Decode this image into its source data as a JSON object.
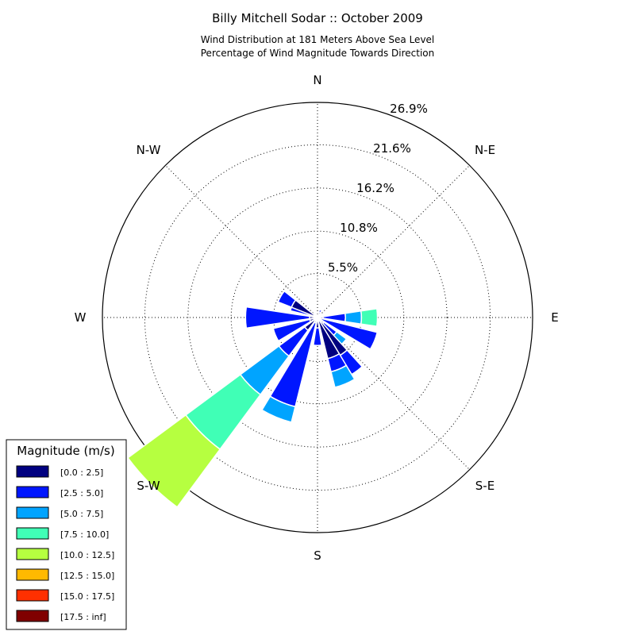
{
  "chart_data": {
    "type": "windrose",
    "title": "Billy Mitchell Sodar :: October 2009",
    "subtitle_lines": [
      "Wind Distribution at 181 Meters Above Sea Level",
      "Percentage of Wind Magnitude Towards Direction"
    ],
    "directions": [
      "N",
      "N-E",
      "E",
      "S-E",
      "S",
      "S-W",
      "W",
      "N-W"
    ],
    "ring_labels": [
      "5.5%",
      "10.8%",
      "16.2%",
      "21.6%",
      "26.9%"
    ],
    "ring_values": [
      5.5,
      10.8,
      16.2,
      21.6,
      26.9
    ],
    "rmax": 26.9,
    "legend": {
      "title": "Magnitude (m/s)",
      "bins": [
        {
          "label": "[0.0 : 2.5]",
          "color": "#000080"
        },
        {
          "label": "[2.5 : 5.0]",
          "color": "#0016ff"
        },
        {
          "label": "[5.0 : 7.5]",
          "color": "#00a4ff"
        },
        {
          "label": "[7.5 : 10.0]",
          "color": "#40ffb6"
        },
        {
          "label": "[10.0 : 12.5]",
          "color": "#b6ff40"
        },
        {
          "label": "[12.5 : 15.0]",
          "color": "#ffb900"
        },
        {
          "label": "[15.0 : 17.5]",
          "color": "#ff3000"
        },
        {
          "label": "[17.5 : inf]",
          "color": "#800000"
        }
      ]
    },
    "sectors": [
      {
        "direction_deg": 22.5,
        "cumulative": [
          0.7,
          1.0
        ]
      },
      {
        "direction_deg": 45,
        "cumulative": [
          0.5
        ]
      },
      {
        "direction_deg": 67.5,
        "cumulative": [
          0.5
        ]
      },
      {
        "direction_deg": 90,
        "cumulative": [
          0.7,
          3.5,
          5.5,
          7.5
        ]
      },
      {
        "direction_deg": 112.5,
        "cumulative": [
          0.5,
          7.7
        ]
      },
      {
        "direction_deg": 135,
        "cumulative": [
          1.0,
          3.0,
          4.5
        ]
      },
      {
        "direction_deg": 146.25,
        "cumulative": [
          5.5,
          8.3
        ]
      },
      {
        "direction_deg": 157.5,
        "cumulative": [
          5.3,
          7.0,
          9.0
        ]
      },
      {
        "direction_deg": 180,
        "cumulative": [
          1.3,
          3.5
        ]
      },
      {
        "direction_deg": 202.5,
        "cumulative": [
          0.7,
          11.5,
          13.5
        ]
      },
      {
        "direction_deg": 225,
        "cumulative": [
          2.0,
          6.0,
          12.0,
          20.5,
          29.5
        ]
      },
      {
        "direction_deg": 247.5,
        "cumulative": [
          1.0,
          5.7
        ]
      },
      {
        "direction_deg": 270,
        "cumulative": [
          1.0,
          9.0
        ]
      },
      {
        "direction_deg": 292.5,
        "cumulative": [
          0.7,
          3.5
        ]
      },
      {
        "direction_deg": 300,
        "cumulative": [
          3.5,
          5.3
        ]
      },
      {
        "direction_deg": 315,
        "cumulative": [
          0.5
        ]
      },
      {
        "direction_deg": 337.5,
        "cumulative": [
          0.5
        ]
      }
    ]
  }
}
